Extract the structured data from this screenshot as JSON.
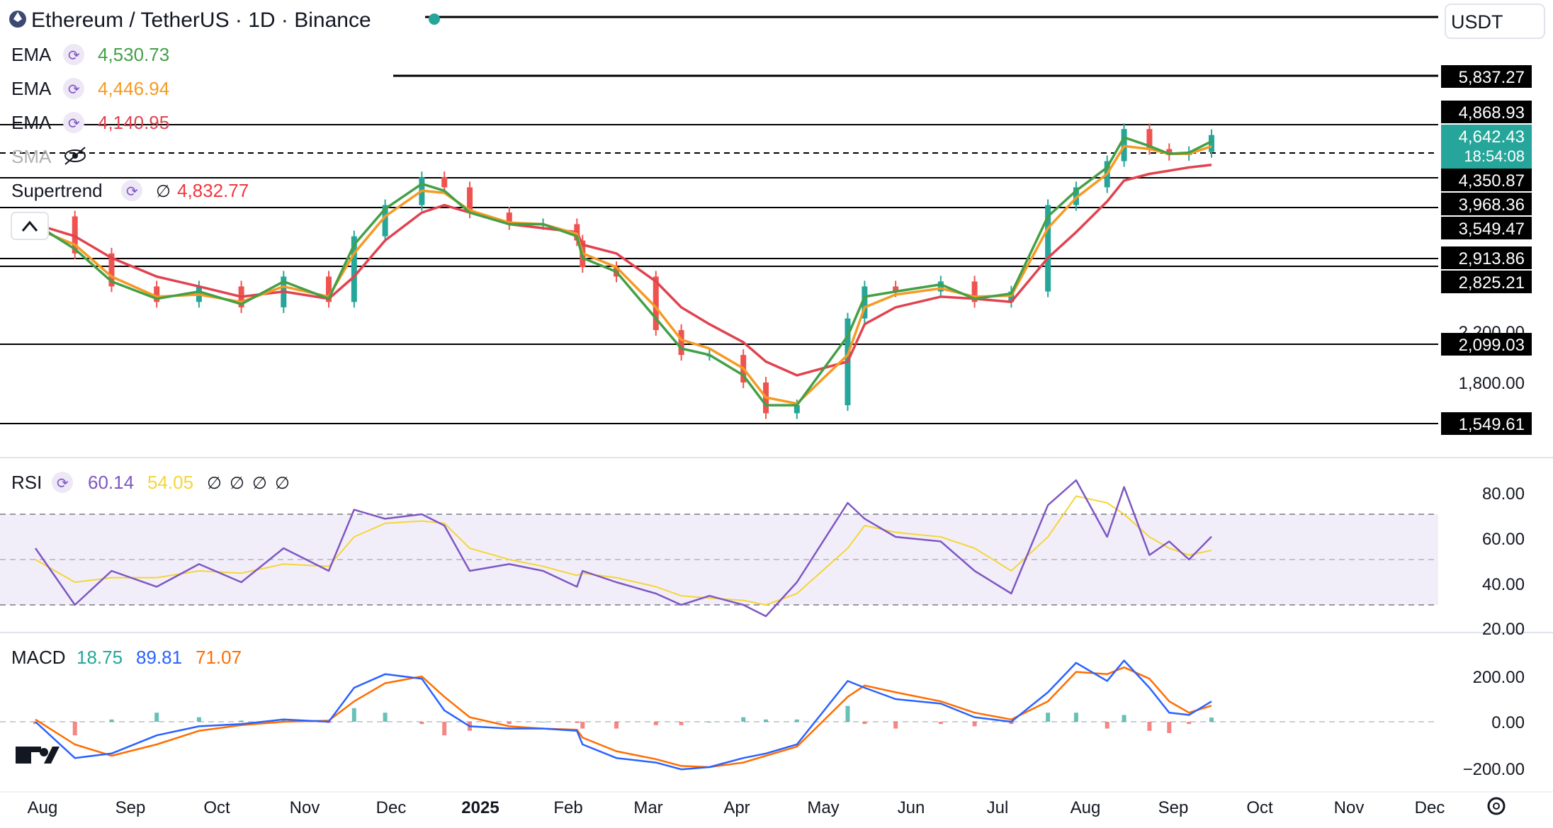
{
  "header": {
    "symbol_title": "Ethereum / TetherUS · 1D · Binance",
    "currency": "USDT"
  },
  "indicators": [
    {
      "name": "EMA",
      "value": "4,530.73",
      "color": "#43a047"
    },
    {
      "name": "EMA",
      "value": "4,446.94",
      "color": "#f59a23"
    },
    {
      "name": "EMA",
      "value": "4,140.95",
      "color": "#e0434f"
    },
    {
      "name": "SMA",
      "value": "",
      "color": "#b0b0b0",
      "hidden": true
    },
    {
      "name": "Supertrend",
      "value": "4,832.77",
      "color": "#f2363c",
      "extra": "∅"
    }
  ],
  "price_levels": [
    "5,837.27",
    "4,868.93",
    "4,350.87",
    "3,968.36",
    "3,549.47",
    "2,913.86",
    "2,825.21",
    "2,099.03",
    "1,549.61"
  ],
  "current_price": {
    "price": "4,642.43",
    "countdown": "18:54:08",
    "color": "#26a69a"
  },
  "price_axis_labels": [
    "2,200.00",
    "1,800.00"
  ],
  "rsi": {
    "label": "RSI",
    "value": "60.14",
    "ma_value": "54.05",
    "empties": [
      "∅",
      "∅",
      "∅",
      "∅"
    ],
    "color": "#7e57c2",
    "ma_color": "#f5d53b",
    "axis": [
      "80.00",
      "60.00",
      "40.00",
      "20.00"
    ],
    "upper": 70,
    "middle": 50,
    "lower": 30
  },
  "macd": {
    "label": "MACD",
    "hist": "18.75",
    "macd": "89.81",
    "signal": "71.07",
    "hist_color": "#26a69a",
    "macd_color": "#2962ff",
    "signal_color": "#ff6d00",
    "axis": [
      "200.00",
      "0.00",
      "−200.00"
    ]
  },
  "time_axis": [
    "Aug",
    "Sep",
    "Oct",
    "Nov",
    "Dec",
    "2025",
    "Feb",
    "Mar",
    "Apr",
    "May",
    "Jun",
    "Jul",
    "Aug",
    "Sep",
    "Oct",
    "Nov",
    "Dec"
  ],
  "chart_data": {
    "type": "candlestick",
    "title": "Ethereum / TetherUS · 1D · Binance",
    "currency": "USDT",
    "x": [
      "2024-07-24",
      "2024-08-07",
      "2024-08-20",
      "2024-09-05",
      "2024-09-20",
      "2024-10-05",
      "2024-10-20",
      "2024-11-05",
      "2024-11-14",
      "2024-11-25",
      "2024-12-08",
      "2024-12-16",
      "2024-12-25",
      "2025-01-08",
      "2025-01-20",
      "2025-02-01",
      "2025-02-03",
      "2025-02-15",
      "2025-03-01",
      "2025-03-10",
      "2025-03-20",
      "2025-04-01",
      "2025-04-09",
      "2025-04-20",
      "2025-05-08",
      "2025-05-14",
      "2025-05-25",
      "2025-06-10",
      "2025-06-22",
      "2025-07-05",
      "2025-07-18",
      "2025-07-28",
      "2025-08-08",
      "2025-08-14",
      "2025-08-23",
      "2025-08-30",
      "2025-09-06",
      "2025-09-14"
    ],
    "close": [
      3400,
      2950,
      2600,
      2450,
      2600,
      2400,
      2700,
      2450,
      3150,
      3550,
      3950,
      3800,
      3450,
      3300,
      3300,
      3100,
      2800,
      2700,
      2200,
      2000,
      2000,
      1800,
      1600,
      1650,
      2300,
      2600,
      2550,
      2650,
      2450,
      2550,
      3550,
      3800,
      4200,
      4750,
      4400,
      4300,
      4350,
      4642
    ],
    "ema_fast": [
      3300,
      3000,
      2650,
      2480,
      2550,
      2430,
      2650,
      2480,
      3050,
      3500,
      3850,
      3750,
      3450,
      3300,
      3300,
      3150,
      2900,
      2750,
      2300,
      2050,
      2000,
      1850,
      1650,
      1650,
      2150,
      2500,
      2550,
      2620,
      2480,
      2530,
      3400,
      3750,
      4100,
      4600,
      4450,
      4320,
      4340,
      4530.73
    ],
    "ema_mid": [
      3250,
      3050,
      2700,
      2500,
      2520,
      2450,
      2600,
      2500,
      2950,
      3400,
      3750,
      3720,
      3480,
      3320,
      3300,
      3180,
      2950,
      2800,
      2400,
      2120,
      2050,
      1900,
      1700,
      1660,
      2000,
      2400,
      2520,
      2580,
      2500,
      2510,
      3250,
      3650,
      4000,
      4450,
      4400,
      4320,
      4320,
      4446.94
    ],
    "ema_slow": [
      3300,
      3150,
      2900,
      2700,
      2600,
      2500,
      2550,
      2480,
      2700,
      3100,
      3450,
      3550,
      3450,
      3300,
      3250,
      3200,
      3050,
      2950,
      2650,
      2400,
      2250,
      2100,
      1950,
      1850,
      1950,
      2250,
      2400,
      2500,
      2480,
      2450,
      2900,
      3200,
      3600,
      3900,
      4000,
      4050,
      4100,
      4140.95
    ],
    "ylim": [
      1400,
      6200
    ],
    "rsi": [
      55,
      30,
      45,
      38,
      48,
      40,
      55,
      45,
      72,
      68,
      70,
      65,
      45,
      48,
      45,
      38,
      45,
      40,
      35,
      30,
      34,
      30,
      25,
      40,
      75,
      68,
      60,
      58,
      45,
      35,
      74,
      85,
      60,
      82,
      52,
      58,
      50,
      60.14
    ],
    "rsi_ma": [
      50,
      40,
      42,
      42,
      45,
      44,
      48,
      47,
      60,
      66,
      67,
      66,
      55,
      50,
      47,
      43,
      44,
      42,
      38,
      34,
      33,
      32,
      30,
      35,
      55,
      65,
      62,
      60,
      55,
      45,
      60,
      78,
      75,
      70,
      60,
      55,
      52,
      54.05
    ],
    "macd": [
      0,
      -160,
      -140,
      -60,
      -20,
      -10,
      10,
      0,
      150,
      210,
      190,
      50,
      -20,
      -30,
      -30,
      -40,
      -100,
      -160,
      -180,
      -210,
      -200,
      -160,
      -140,
      -100,
      180,
      150,
      100,
      80,
      20,
      0,
      130,
      260,
      180,
      270,
      150,
      40,
      30,
      89.81
    ],
    "macd_signal": [
      10,
      -100,
      -150,
      -100,
      -40,
      -15,
      0,
      5,
      90,
      170,
      200,
      110,
      20,
      -20,
      -30,
      -35,
      -70,
      -130,
      -165,
      -195,
      -200,
      -180,
      -150,
      -110,
      110,
      160,
      130,
      90,
      40,
      10,
      90,
      220,
      210,
      240,
      190,
      90,
      40,
      71.07
    ],
    "macd_hist": [
      -10,
      -60,
      10,
      40,
      20,
      5,
      10,
      -5,
      60,
      40,
      -10,
      -60,
      -40,
      -10,
      0,
      -5,
      -30,
      -30,
      -15,
      -15,
      0,
      20,
      10,
      10,
      70,
      -10,
      -30,
      -10,
      -20,
      -10,
      40,
      40,
      -30,
      30,
      -40,
      -50,
      -10,
      18.75
    ]
  }
}
